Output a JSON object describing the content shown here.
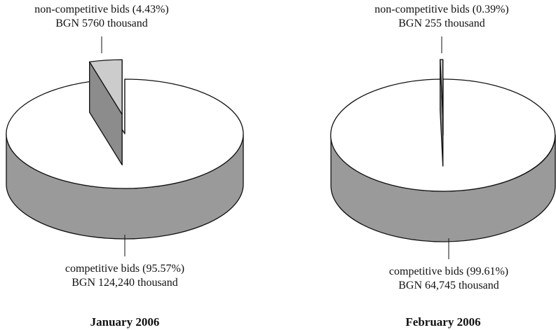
{
  "chart_data": [
    {
      "type": "pie3d",
      "title": "January 2006",
      "categories": [
        "non-competitive bids",
        "competitive bids"
      ],
      "values": [
        4.43,
        95.57
      ],
      "value_labels": [
        "(4.43%)",
        "(95.57%)"
      ],
      "amount_labels": [
        "BGN 5760 thousand",
        "BGN 124,240 thousand"
      ],
      "colors": [
        "#cccccc",
        "#ffffff"
      ],
      "side_colors": [
        "#8c8c8c",
        "#9a9a9a"
      ]
    },
    {
      "type": "pie3d",
      "title": "February 2006",
      "categories": [
        "non-competitive bids",
        "competitive bids"
      ],
      "values": [
        0.39,
        99.61
      ],
      "value_labels": [
        "(0.39%)",
        "(99.61%)"
      ],
      "amount_labels": [
        "BGN 255 thousand",
        "BGN 64,745 thousand"
      ],
      "colors": [
        "#cccccc",
        "#ffffff"
      ],
      "side_colors": [
        "#8c8c8c",
        "#9a9a9a"
      ]
    }
  ]
}
